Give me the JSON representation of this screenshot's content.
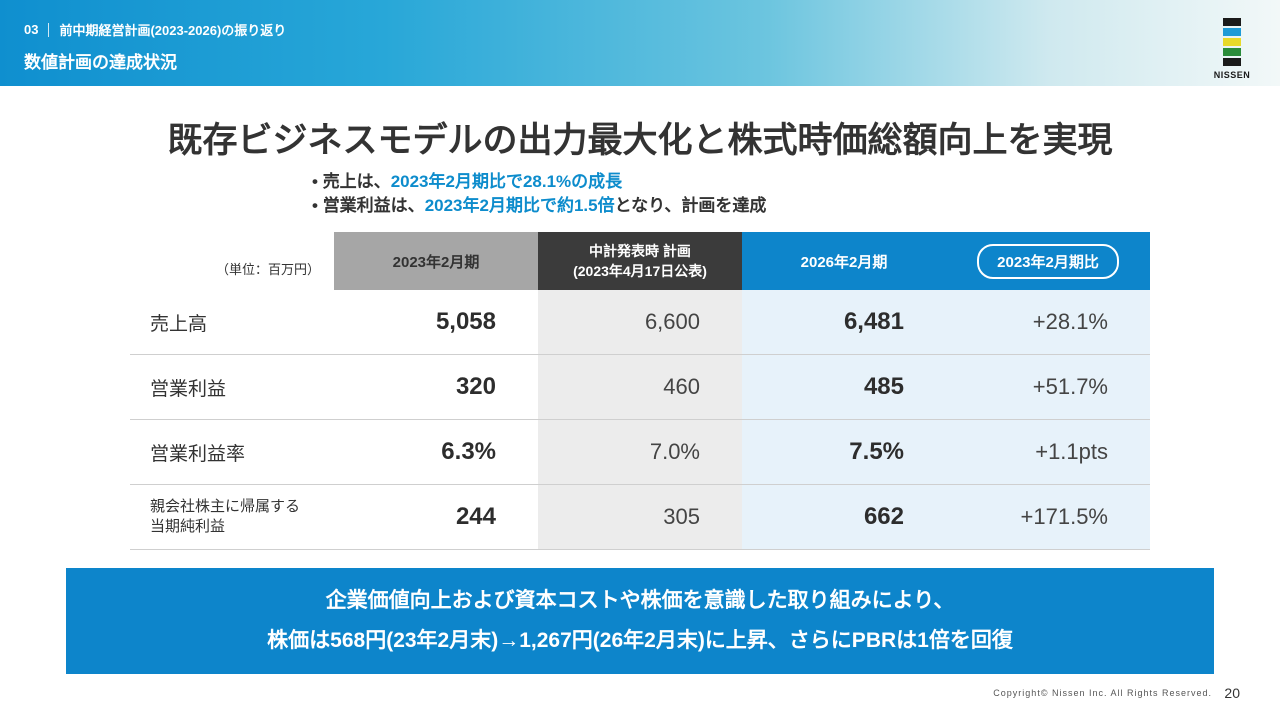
{
  "header": {
    "section_number": "03",
    "section_title": "前中期経営計画(2023-2026)の振り返り",
    "page_title": "数値計画の達成状況"
  },
  "logo": {
    "text": "NISSEN",
    "colors": [
      "#1a1a1a",
      "#1e9bd7",
      "#e8d92a",
      "#2a8c3a",
      "#1a1a1a"
    ]
  },
  "heading": "既存ビジネスモデルの出力最大化と株式時価総額向上を実現",
  "bullets": [
    {
      "pre": "売上は、",
      "highlight": "2023年2月期比で28.1%の成長",
      "post": ""
    },
    {
      "pre": "営業利益は、",
      "highlight": "2023年2月期比で約1.5倍",
      "post": "となり、計画を達成"
    }
  ],
  "table": {
    "unit": "（単位：百万円）",
    "headers": {
      "col1": "2023年2月期",
      "col2_line1": "中計発表時 計画",
      "col2_line2": "(2023年4月17日公表)",
      "col3": "2026年2月期",
      "col4": "2023年2月期比"
    },
    "rows": [
      {
        "label": "売上高",
        "v2023": "5,058",
        "plan": "6,600",
        "v2026": "6,481",
        "change": "+28.1%"
      },
      {
        "label": "営業利益",
        "v2023": "320",
        "plan": "460",
        "v2026": "485",
        "change": "+51.7%"
      },
      {
        "label": "営業利益率",
        "v2023": "6.3%",
        "plan": "7.0%",
        "v2026": "7.5%",
        "change": "+1.1pts"
      },
      {
        "label_line1": "親会社株主に帰属する",
        "label_line2": "当期純利益",
        "v2023": "244",
        "plan": "305",
        "v2026": "662",
        "change": "+171.5%"
      }
    ]
  },
  "banner": {
    "line1": "企業価値向上および資本コストや株価を意識した取り組みにより、",
    "line2": "株価は568円(23年2月末)→1,267円(26年2月末)に上昇、さらにPBRは1倍を回復"
  },
  "footer": {
    "copyright": "Copyright© Nissen Inc. All Rights Reserved.",
    "page": "20"
  },
  "colors": {
    "accent": "#0d85cb",
    "highlight_text": "#0d8ccc",
    "dark_header": "#3b3b3b",
    "gray_header": "#a6a6a6"
  }
}
